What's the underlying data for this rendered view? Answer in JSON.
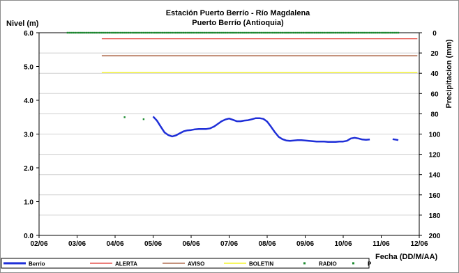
{
  "chart_data": {
    "type": "line",
    "title": "Estación Puerto Berrío - Río Magdalena",
    "subtitle": "Puerto Berrío (Antioquia)",
    "ylabel": "Nivel (m)",
    "y2label": "Precipitacion (mm)",
    "xlabel": "Fecha (DD/M/AA)",
    "ylim": [
      0,
      6
    ],
    "y2lim": [
      0,
      200
    ],
    "y2_inverted": true,
    "xlim": [
      "02/06",
      "12/06"
    ],
    "x_ticks": [
      "02/06",
      "03/06",
      "04/06",
      "05/06",
      "06/06",
      "07/06",
      "08/06",
      "09/06",
      "10/06",
      "11/06",
      "12/06"
    ],
    "y_ticks": [
      "0.0",
      "1.0",
      "2.0",
      "3.0",
      "4.0",
      "5.0",
      "6.0"
    ],
    "y2_ticks": [
      "0",
      "20",
      "40",
      "60",
      "80",
      "100",
      "120",
      "140",
      "160",
      "180",
      "200"
    ],
    "grid": true,
    "legend_position": "bottom",
    "series": [
      {
        "name": "Berrio",
        "color": "#1f2fd8",
        "axis": "left",
        "style": "line",
        "points": [
          [
            3.0,
            3.52
          ],
          [
            3.1,
            3.4
          ],
          [
            3.2,
            3.22
          ],
          [
            3.3,
            3.05
          ],
          [
            3.4,
            2.97
          ],
          [
            3.5,
            2.93
          ],
          [
            3.6,
            2.96
          ],
          [
            3.7,
            3.02
          ],
          [
            3.8,
            3.08
          ],
          [
            3.9,
            3.11
          ],
          [
            4.0,
            3.12
          ],
          [
            4.1,
            3.14
          ],
          [
            4.2,
            3.15
          ],
          [
            4.3,
            3.15
          ],
          [
            4.4,
            3.15
          ],
          [
            4.5,
            3.17
          ],
          [
            4.6,
            3.22
          ],
          [
            4.7,
            3.3
          ],
          [
            4.8,
            3.38
          ],
          [
            4.9,
            3.43
          ],
          [
            5.0,
            3.46
          ],
          [
            5.1,
            3.42
          ],
          [
            5.2,
            3.38
          ],
          [
            5.3,
            3.38
          ],
          [
            5.4,
            3.4
          ],
          [
            5.5,
            3.41
          ],
          [
            5.6,
            3.44
          ],
          [
            5.7,
            3.47
          ],
          [
            5.8,
            3.47
          ],
          [
            5.9,
            3.45
          ],
          [
            6.0,
            3.37
          ],
          [
            6.1,
            3.22
          ],
          [
            6.2,
            3.06
          ],
          [
            6.3,
            2.92
          ],
          [
            6.4,
            2.85
          ],
          [
            6.5,
            2.81
          ],
          [
            6.6,
            2.8
          ],
          [
            6.7,
            2.81
          ],
          [
            6.8,
            2.82
          ],
          [
            6.9,
            2.82
          ],
          [
            7.0,
            2.81
          ],
          [
            7.1,
            2.8
          ],
          [
            7.2,
            2.79
          ],
          [
            7.3,
            2.78
          ],
          [
            7.4,
            2.78
          ],
          [
            7.5,
            2.78
          ],
          [
            7.6,
            2.77
          ],
          [
            7.7,
            2.77
          ],
          [
            7.8,
            2.77
          ],
          [
            7.9,
            2.78
          ],
          [
            8.0,
            2.78
          ],
          [
            8.1,
            2.8
          ],
          [
            8.2,
            2.87
          ],
          [
            8.3,
            2.89
          ],
          [
            8.4,
            2.87
          ],
          [
            8.5,
            2.84
          ],
          [
            8.6,
            2.83
          ],
          [
            8.7,
            2.84
          ],
          null,
          [
            9.3,
            2.85
          ],
          [
            9.4,
            2.83
          ],
          [
            9.45,
            2.82
          ]
        ]
      },
      {
        "name": "ALERTA",
        "color": "#e0322a",
        "axis": "left",
        "style": "line",
        "points": [
          [
            1.65,
            5.82
          ],
          [
            9.95,
            5.82
          ]
        ]
      },
      {
        "name": "AVISO",
        "color": "#a0522d",
        "axis": "left",
        "style": "line",
        "points": [
          [
            1.65,
            5.32
          ],
          [
            9.95,
            5.32
          ]
        ]
      },
      {
        "name": "BOLETIN",
        "color": "#f2f200",
        "axis": "left",
        "style": "line",
        "points": [
          [
            1.65,
            4.82
          ],
          [
            9.95,
            4.82
          ]
        ]
      },
      {
        "name": "RADIO",
        "color": "#1a8a2e",
        "axis": "left",
        "style": "points",
        "points": [
          [
            2.25,
            3.5
          ],
          [
            2.75,
            3.44
          ]
        ]
      },
      {
        "name": "P",
        "color": "#1a8a2e",
        "axis": "right",
        "style": "points",
        "x_range": [
          0.75,
          9.45
        ],
        "value": 0
      }
    ]
  }
}
